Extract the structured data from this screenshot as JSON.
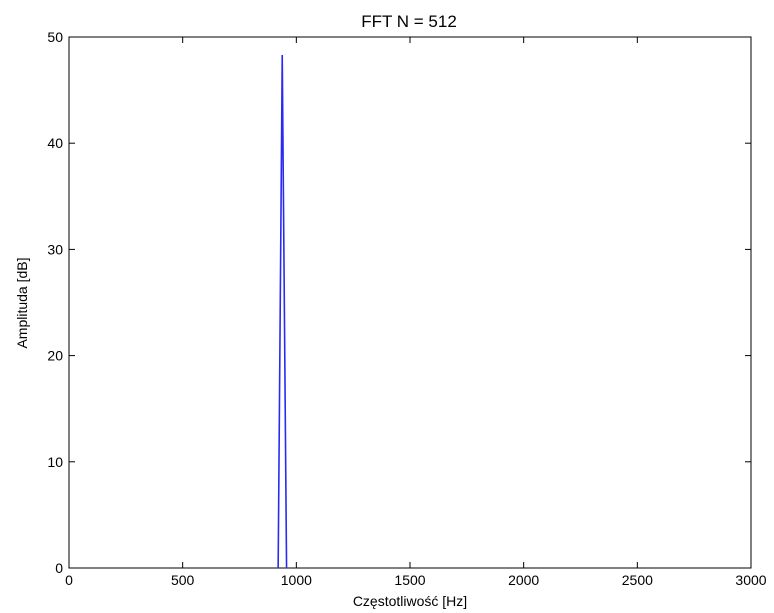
{
  "chart_data": {
    "type": "line",
    "title": "FFT N = 512",
    "xlabel": "Częstotliwość [Hz]",
    "ylabel": "Amplituda [dB]",
    "xlim": [
      0,
      3000
    ],
    "ylim": [
      0,
      50
    ],
    "xticks": [
      "0",
      "500",
      "1000",
      "1500",
      "2000",
      "2500",
      "3000"
    ],
    "yticks": [
      "0",
      "10",
      "20",
      "30",
      "40",
      "50"
    ],
    "grid": false,
    "series": [
      {
        "color": "#2a2af0",
        "x": [
          920,
          938,
          957
        ],
        "y": [
          0,
          48.3,
          0
        ]
      }
    ]
  }
}
